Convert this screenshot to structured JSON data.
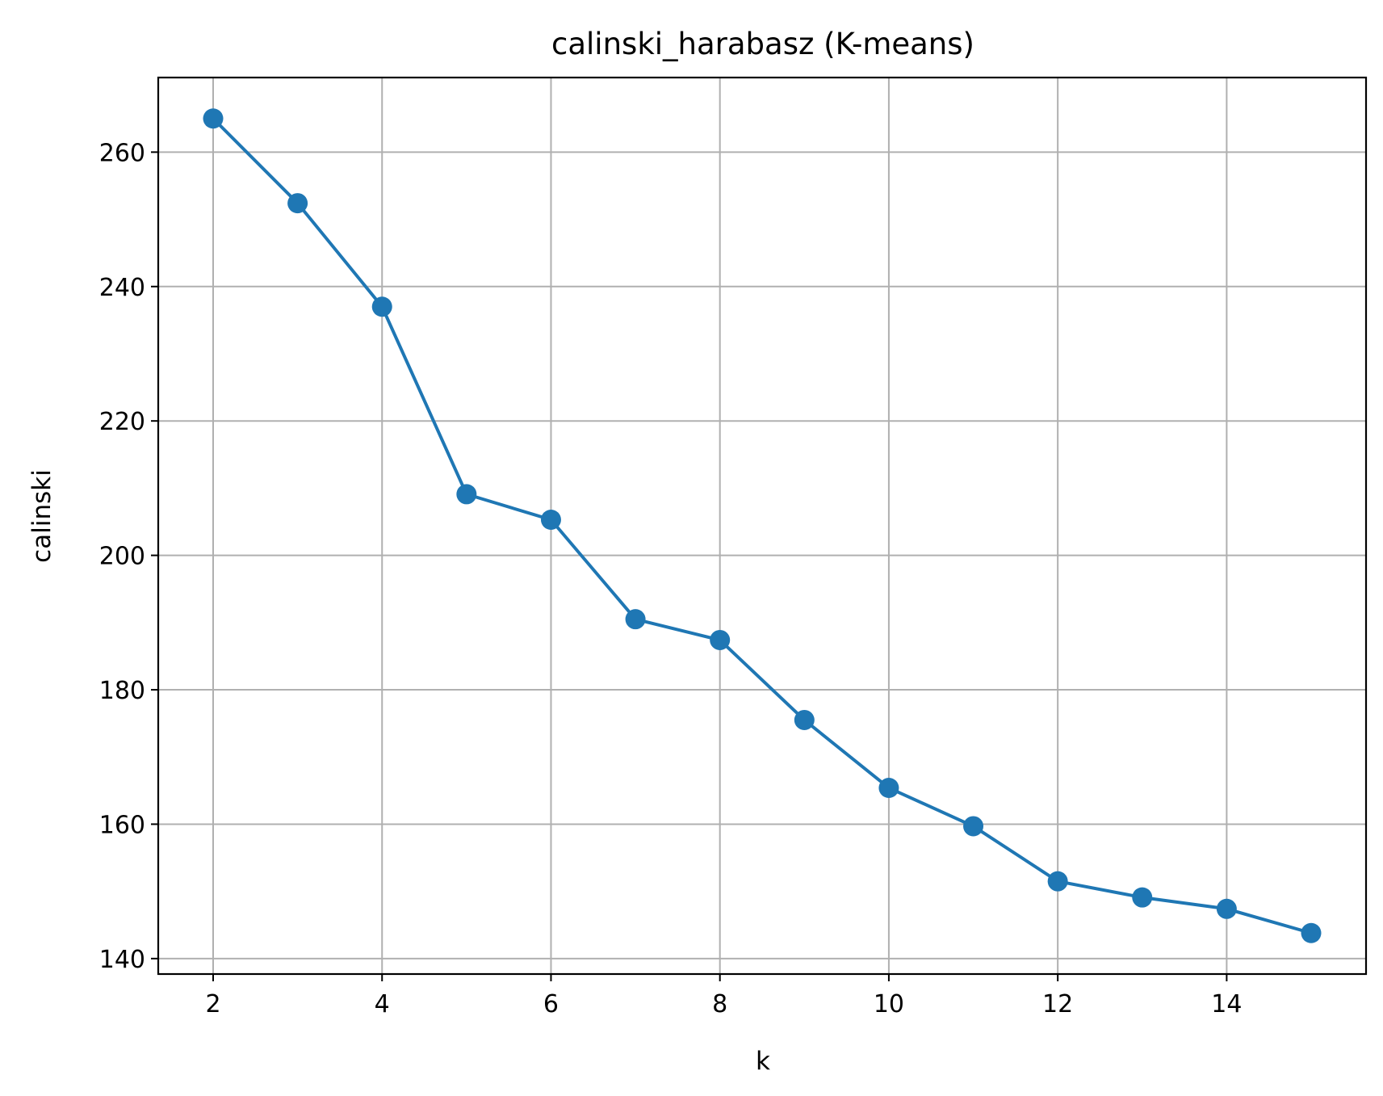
{
  "chart_data": {
    "type": "line",
    "title": "calinski_harabasz (K-means)",
    "xlabel": "k",
    "ylabel": "calinski",
    "x": [
      2,
      3,
      4,
      5,
      6,
      7,
      8,
      9,
      10,
      11,
      12,
      13,
      14,
      15
    ],
    "series": [
      {
        "values": [
          265.0,
          252.4,
          237.0,
          209.1,
          205.3,
          190.5,
          187.4,
          175.5,
          165.4,
          159.7,
          151.5,
          149.1,
          147.4,
          143.8
        ],
        "color": "#1f77b4"
      }
    ],
    "xlim": [
      1.35,
      15.65
    ],
    "ylim": [
      137.7,
      271.1
    ],
    "xticks": [
      "2",
      "4",
      "6",
      "8",
      "10",
      "12",
      "14"
    ],
    "yticks": [
      "140",
      "160",
      "180",
      "200",
      "220",
      "240",
      "260"
    ],
    "grid": true,
    "marker": "circle"
  }
}
